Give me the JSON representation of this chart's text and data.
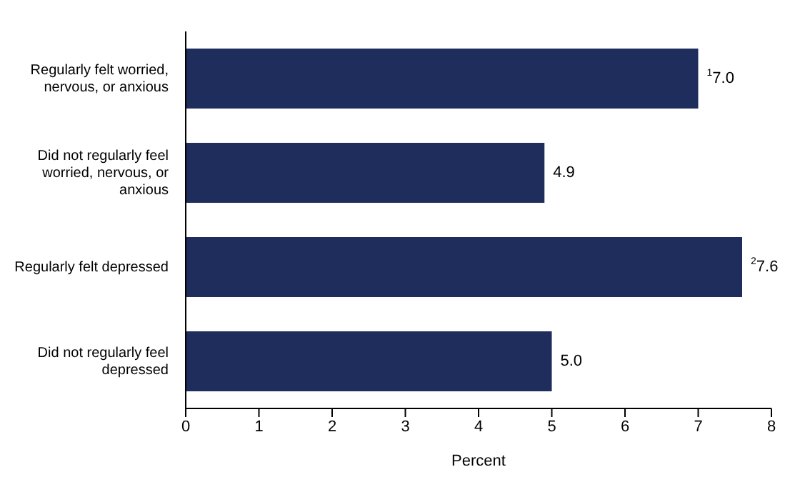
{
  "chart_data": {
    "type": "bar",
    "orientation": "horizontal",
    "xlabel": "Percent",
    "categories": [
      "Regularly felt worried, nervous, or anxious",
      "Did not regularly feel worried, nervous, or anxious",
      "Regularly felt depressed",
      "Did not regularly feel depressed"
    ],
    "values": [
      7.0,
      4.9,
      7.6,
      5.0
    ],
    "value_labels": [
      "$^{1}$7.0",
      "4.9",
      "$^{2}$7.6",
      "5.0"
    ],
    "color": "#1f2d5c",
    "xlim": [
      0,
      8
    ],
    "xticks": [
      0,
      1,
      2,
      3,
      4,
      5,
      6,
      7,
      8
    ],
    "grid": false,
    "legend": false
  }
}
